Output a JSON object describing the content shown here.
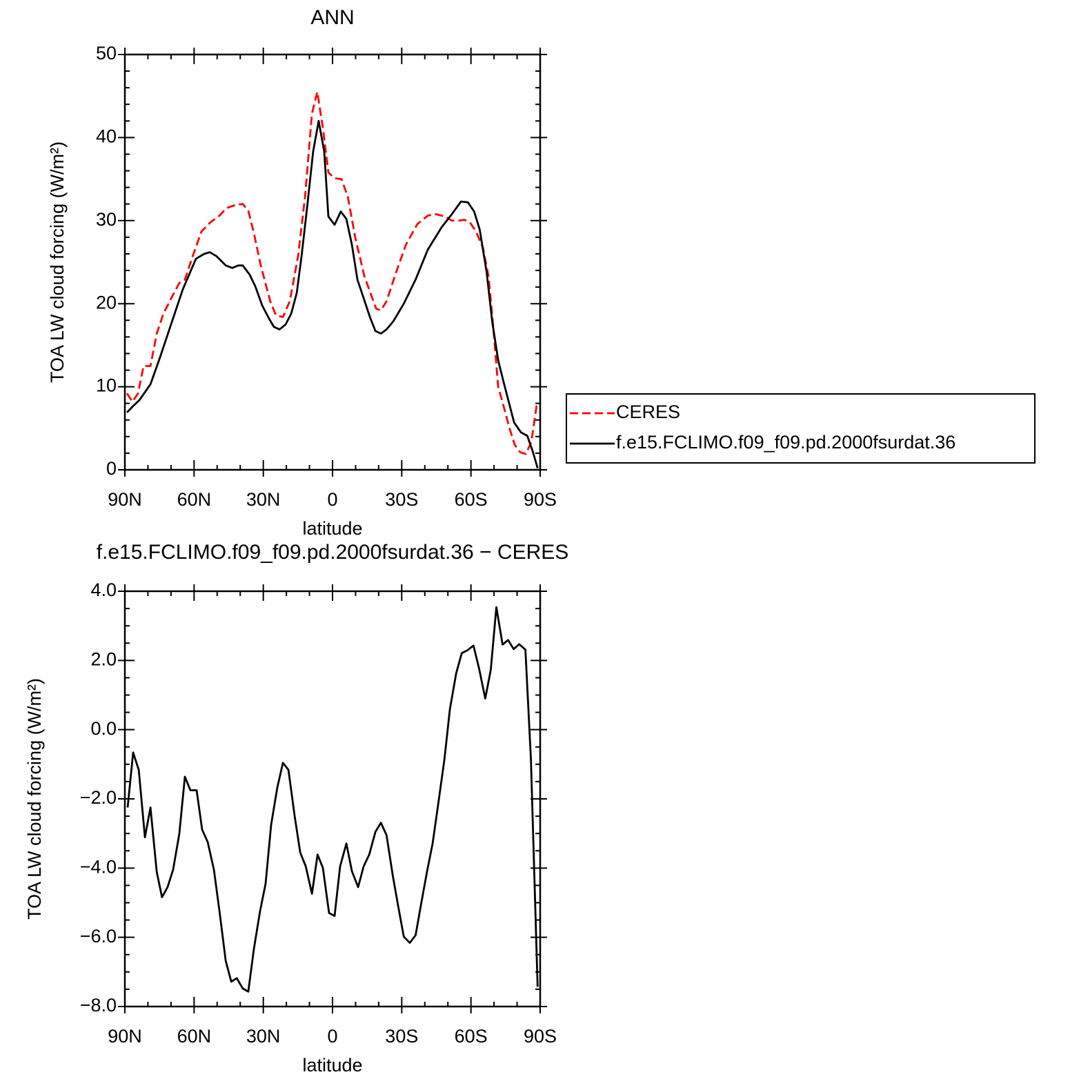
{
  "chart_data": [
    {
      "type": "line",
      "title": "ANN",
      "xlabel": "latitude",
      "ylabel": "TOA LW cloud forcing (W/m²)",
      "xlim": [
        90,
        -90
      ],
      "ylim": [
        0,
        50
      ],
      "xticks": [
        {
          "value": 90,
          "label": "90N"
        },
        {
          "value": 60,
          "label": "60N"
        },
        {
          "value": 30,
          "label": "30N"
        },
        0,
        {
          "value": -30,
          "label": "30S"
        },
        {
          "value": -60,
          "label": "60S"
        },
        {
          "value": -90,
          "label": "90S"
        }
      ],
      "yticks": [
        0,
        10,
        20,
        30,
        40,
        50
      ],
      "legend": "right",
      "series": [
        {
          "name": "CERES",
          "color": "#ff0000",
          "dash": true,
          "x": [
            89.1,
            86.7,
            84.3,
            81.9,
            78.9,
            76.2,
            73.3,
            70,
            66.4,
            64,
            61,
            56.8,
            52.9,
            49,
            46,
            41.9,
            38.9,
            36.5,
            34.1,
            31.1,
            26.9,
            24.5,
            21.5,
            18.5,
            14.9,
            11.9,
            8.9,
            6.6,
            4.2,
            1.8,
            -0.9,
            -3.9,
            -6.6,
            -9.9,
            -13.8,
            -18.9,
            -21,
            -23.4,
            -27.6,
            -31.8,
            -36.8,
            -41.3,
            -44.3,
            -48.8,
            -51.8,
            -54.8,
            -57.1,
            -59.5,
            -62.2,
            -65.2,
            -67.6,
            -69.7,
            -71.8,
            -74.2,
            -76.6,
            -79,
            -81.4,
            -83.8,
            -86.2,
            -88.6
          ],
          "values": [
            9.2,
            8.2,
            9.2,
            12.5,
            12.5,
            16.4,
            18.8,
            20.6,
            22.5,
            22.9,
            25.4,
            28.7,
            29.8,
            30.6,
            31.5,
            31.9,
            32,
            31.2,
            28.5,
            24.6,
            20.2,
            18.6,
            18.4,
            20.3,
            25.8,
            32.9,
            42.9,
            45.5,
            41.2,
            35.8,
            35.1,
            35,
            32.9,
            27.9,
            23.3,
            19.4,
            19.2,
            20.3,
            23.8,
            27.1,
            29.6,
            30.6,
            30.8,
            30.5,
            30,
            30,
            30.1,
            29.8,
            28.7,
            26.7,
            23.3,
            17.1,
            10,
            7.6,
            5.1,
            3,
            2.1,
            1.9,
            3.4,
            8
          ]
        },
        {
          "name": "f.e15.FCLIMO.f09_f09.pd.2000fsurdat.36",
          "color": "#000000",
          "dash": false,
          "x": [
            89.1,
            86.7,
            83.7,
            78.9,
            74.8,
            70,
            64.9,
            59.2,
            55.6,
            53.2,
            50.2,
            46.3,
            43.4,
            40.9,
            38.9,
            35.9,
            33.5,
            30.5,
            27.5,
            25.4,
            23,
            20.3,
            17.9,
            15.5,
            13.4,
            11,
            8.4,
            6,
            3.6,
            1.8,
            -0.9,
            -3.6,
            -6,
            -8.4,
            -10.8,
            -13.8,
            -16.2,
            -18.6,
            -21,
            -23.4,
            -26.4,
            -30.9,
            -36,
            -41.3,
            -47.3,
            -51.8,
            -55.7,
            -58.7,
            -61.4,
            -63.8,
            -66.8,
            -69.2,
            -71.8,
            -74.2,
            -78.7,
            -81.7,
            -84.4,
            -86.8,
            -88.9
          ],
          "values": [
            6.9,
            7.6,
            8.4,
            10.3,
            13.5,
            17.5,
            21.7,
            25.4,
            26,
            26.2,
            25.7,
            24.6,
            24.3,
            24.6,
            24.6,
            23.5,
            22.1,
            19.8,
            18.2,
            17.2,
            16.9,
            17.5,
            18.8,
            21.3,
            25.8,
            31.6,
            38.3,
            42,
            38.3,
            30.5,
            29.5,
            31.1,
            30.2,
            27.1,
            22.9,
            20.4,
            18.4,
            16.7,
            16.4,
            16.9,
            17.9,
            20,
            22.9,
            26.5,
            29.2,
            30.8,
            32.3,
            32.2,
            31.1,
            28.9,
            23.8,
            17.9,
            13.2,
            10.5,
            5.7,
            4.5,
            4.1,
            2.2,
            0.2
          ]
        }
      ]
    },
    {
      "type": "line",
      "title": "f.e15.FCLIMO.f09_f09.pd.2000fsurdat.36 − CERES",
      "xlabel": "latitude",
      "ylabel": "TOA LW cloud forcing (W/m²)",
      "xlim": [
        90,
        -90
      ],
      "ylim": [
        -8,
        4
      ],
      "xticks": [
        {
          "value": 90,
          "label": "90N"
        },
        {
          "value": 60,
          "label": "60N"
        },
        {
          "value": 30,
          "label": "30N"
        },
        0,
        {
          "value": -30,
          "label": "30S"
        },
        {
          "value": -60,
          "label": "60S"
        },
        {
          "value": -90,
          "label": "90S"
        }
      ],
      "yticks": [
        {
          "value": -8,
          "label": "−8.0"
        },
        {
          "value": -6,
          "label": "−6.0"
        },
        {
          "value": -4,
          "label": "−4.0"
        },
        {
          "value": -2,
          "label": "−2.0"
        },
        {
          "value": 0,
          "label": "0.0"
        },
        {
          "value": 2,
          "label": "2.0"
        },
        {
          "value": 4,
          "label": "4.0"
        }
      ],
      "series": [
        {
          "color": "#000000",
          "dash": false,
          "x": [
            88.8,
            86.4,
            84,
            81.3,
            78.9,
            76.2,
            73.9,
            71.5,
            69.1,
            66.4,
            64,
            61.6,
            58.9,
            56.5,
            54.1,
            51.4,
            49,
            46.3,
            43.9,
            41.5,
            38.9,
            36.5,
            34.1,
            31.4,
            29,
            26.6,
            23.9,
            21.5,
            19.1,
            16.4,
            14,
            11.6,
            8.9,
            6.5,
            4.2,
            1.5,
            -0.9,
            -3.3,
            -6,
            -8.4,
            -11.1,
            -13.5,
            -15.9,
            -18.6,
            -21,
            -23.4,
            -26.1,
            -28.4,
            -30.9,
            -33.5,
            -36,
            -38.4,
            -41,
            -43.4,
            -45.8,
            -48.5,
            -50.9,
            -53.6,
            -56,
            -58.4,
            -61.1,
            -63.5,
            -66.2,
            -68.6,
            -71,
            -73.7,
            -76.1,
            -78.5,
            -80.9,
            -83.6,
            -86,
            -88.9
          ],
          "values": [
            -2.25,
            -0.66,
            -1.16,
            -3.11,
            -2.25,
            -4.11,
            -4.84,
            -4.55,
            -4.05,
            -3.01,
            -1.36,
            -1.75,
            -1.75,
            -2.89,
            -3.25,
            -4.05,
            -5.24,
            -6.68,
            -7.28,
            -7.18,
            -7.48,
            -7.57,
            -6.34,
            -5.24,
            -4.45,
            -2.75,
            -1.66,
            -0.96,
            -1.16,
            -2.51,
            -3.55,
            -3.95,
            -4.74,
            -3.61,
            -3.99,
            -5.3,
            -5.38,
            -3.95,
            -3.29,
            -4.09,
            -4.55,
            -3.95,
            -3.61,
            -2.95,
            -2.69,
            -3.05,
            -4.21,
            -5.08,
            -5.98,
            -6.16,
            -5.94,
            -5.04,
            -4.09,
            -3.29,
            -2.15,
            -0.86,
            0.6,
            1.63,
            2.21,
            2.29,
            2.43,
            1.77,
            0.9,
            1.73,
            3.54,
            2.46,
            2.59,
            2.33,
            2.47,
            2.31,
            -0.86,
            -7.43
          ]
        }
      ]
    }
  ]
}
